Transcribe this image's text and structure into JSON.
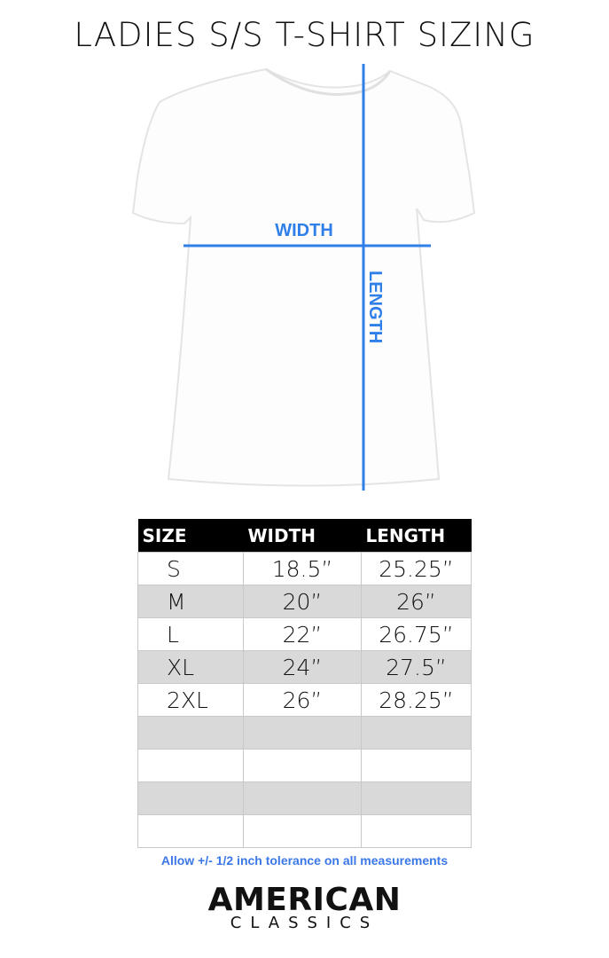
{
  "title": "LADIES S/S T-SHIRT SIZING",
  "diagram": {
    "width_label": "WIDTH",
    "length_label": "LENGTH",
    "accent": "#2f7fe8"
  },
  "table": {
    "headers": [
      "SIZE",
      "WIDTH",
      "LENGTH"
    ],
    "rows": [
      [
        "S",
        "18.5”",
        "25.25”"
      ],
      [
        "M",
        "20”",
        "26”"
      ],
      [
        "L",
        "22”",
        "26.75”"
      ],
      [
        "XL",
        "24”",
        "27.5”"
      ],
      [
        "2XL",
        "26”",
        "28.25”"
      ],
      [
        "",
        "",
        ""
      ],
      [
        "",
        "",
        ""
      ],
      [
        "",
        "",
        ""
      ],
      [
        "",
        "",
        ""
      ]
    ]
  },
  "note": "Allow +/- 1/2 inch tolerance on all measurements",
  "brand": {
    "name": "AMERICAN",
    "sub": "CLASSICS"
  }
}
